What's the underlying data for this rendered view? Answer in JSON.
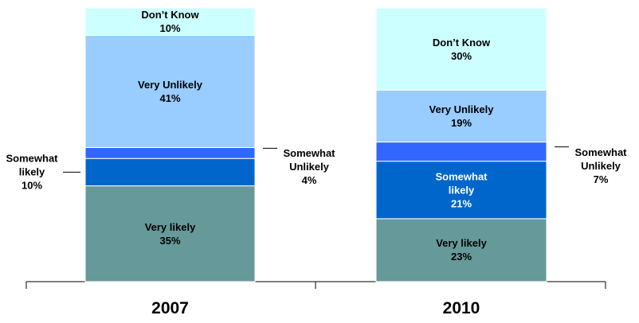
{
  "chart_data": {
    "type": "stacked_bar",
    "categories": [
      "2007",
      "2010"
    ],
    "ylim": [
      0,
      100
    ],
    "series": [
      {
        "name": "Very likely",
        "color": "#669999",
        "values": [
          35,
          23
        ],
        "value_labels": [
          "35%",
          "23%"
        ]
      },
      {
        "name": "Somewhat likely",
        "color": "#0066cc",
        "values": [
          10,
          21
        ],
        "value_labels": [
          "10%",
          "21%"
        ]
      },
      {
        "name": "Somewhat Unlikely",
        "color": "#3366ff",
        "values": [
          4,
          7
        ],
        "value_labels": [
          "4%",
          "7%"
        ]
      },
      {
        "name": "Very Unlikely",
        "color": "#99ccff",
        "values": [
          41,
          19
        ],
        "value_labels": [
          "41%",
          "19%"
        ]
      },
      {
        "name": "Don’t Know",
        "color": "#ccffff",
        "values": [
          10,
          30
        ],
        "value_labels": [
          "10%",
          "30%"
        ]
      }
    ]
  }
}
